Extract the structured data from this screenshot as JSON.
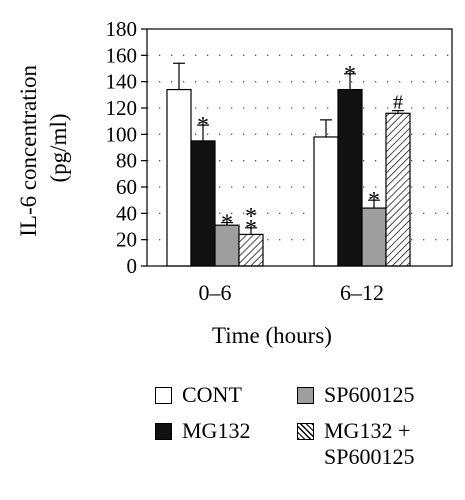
{
  "chart_data": {
    "type": "bar",
    "ylabel_line1": "IL-6 concentration",
    "ylabel_line2": "(pg/ml)",
    "xlabel": "Time (hours)",
    "ylim": [
      0,
      180
    ],
    "yticks": [
      0,
      20,
      40,
      60,
      80,
      100,
      120,
      140,
      160,
      180
    ],
    "grid": "dotted",
    "categories": [
      "0–6",
      "6–12"
    ],
    "series": [
      {
        "name": "CONT",
        "values": [
          134,
          98
        ],
        "errors": [
          20,
          13
        ],
        "fill": "#ffffff",
        "pattern": "none",
        "marks": [
          "",
          ""
        ]
      },
      {
        "name": "MG132",
        "values": [
          95,
          134
        ],
        "errors": [
          12,
          12
        ],
        "fill": "#111111",
        "pattern": "none",
        "marks": [
          "*",
          "*"
        ]
      },
      {
        "name": "SP600125",
        "values": [
          31,
          44
        ],
        "errors": [
          2,
          6
        ],
        "fill": "#9e9e9e",
        "pattern": "none",
        "marks": [
          "*",
          "*"
        ]
      },
      {
        "name": "MG132 + SP600125",
        "values": [
          24,
          116
        ],
        "errors": [
          5,
          2
        ],
        "fill": "#ffffff",
        "pattern": "hatch",
        "marks": [
          "*\n*",
          "#"
        ]
      }
    ],
    "legend": {
      "placement": "bottom",
      "items": [
        {
          "label": "CONT"
        },
        {
          "label": "SP600125"
        },
        {
          "label": "MG132"
        },
        {
          "label": "MG132 +\nSP600125"
        }
      ]
    }
  }
}
